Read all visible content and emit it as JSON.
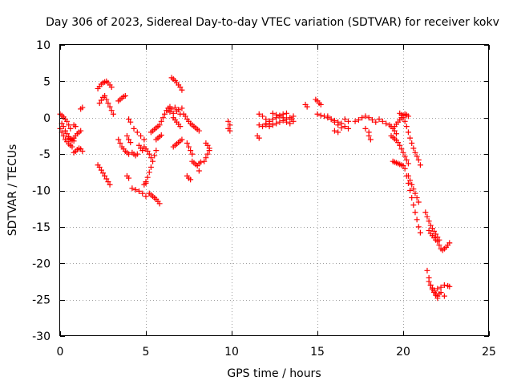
{
  "chart_data": {
    "type": "scatter",
    "title": "Day 306 of 2023, Sidereal Day-to-day VTEC variation (SDTVAR) for receiver kokv",
    "xlabel": "GPS time / hours",
    "ylabel": "SDTVAR / TECUs",
    "xlim": [
      0,
      25
    ],
    "ylim": [
      -30,
      10
    ],
    "xticks": [
      0,
      5,
      10,
      15,
      20,
      25
    ],
    "yticks": [
      -30,
      -25,
      -20,
      -15,
      -10,
      -5,
      0,
      5,
      10
    ],
    "xtick_labels": [
      "0",
      "5",
      "10",
      "15",
      "20",
      "25"
    ],
    "ytick_labels": [
      "-30",
      "-25",
      "-20",
      "-15",
      "-10",
      "-5",
      "0",
      "5",
      "10"
    ],
    "grid": true,
    "marker": "+",
    "color": "#ff0000",
    "series": [
      {
        "name": "seg01",
        "x": [
          0.0,
          0.1,
          0.2,
          0.3,
          0.4,
          0.5,
          0.6
        ],
        "y": [
          0.5,
          0.3,
          0.1,
          -0.2,
          -0.5,
          -1.0,
          -1.5
        ]
      },
      {
        "name": "seg02",
        "x": [
          0.0,
          0.1,
          0.2,
          0.3,
          0.4,
          0.5,
          0.6,
          0.7
        ],
        "y": [
          -1.5,
          -2.0,
          -2.5,
          -3.0,
          -3.3,
          -3.6,
          -3.8,
          -4.0
        ]
      },
      {
        "name": "seg03",
        "x": [
          0.1,
          0.2,
          0.3,
          0.4,
          0.5,
          0.6,
          0.7,
          0.8
        ],
        "y": [
          -0.8,
          -1.2,
          -1.8,
          -2.2,
          -2.6,
          -2.9,
          -3.1,
          -3.2
        ]
      },
      {
        "name": "seg04",
        "x": [
          0.5,
          0.6,
          0.7,
          0.8,
          0.9,
          1.0,
          1.1,
          1.2
        ],
        "y": [
          -2.8,
          -3.0,
          -3.0,
          -2.8,
          -2.5,
          -2.2,
          -2.0,
          -1.8
        ]
      },
      {
        "name": "seg05",
        "x": [
          0.8,
          0.9,
          1.0,
          1.1,
          1.2,
          1.3
        ],
        "y": [
          -4.8,
          -4.6,
          -4.4,
          -4.2,
          -4.3,
          -4.6
        ]
      },
      {
        "name": "seg06",
        "x": [
          0.8,
          0.9
        ],
        "y": [
          -1.0,
          -1.2
        ]
      },
      {
        "name": "seg07",
        "x": [
          1.2,
          1.3
        ],
        "y": [
          1.2,
          1.4
        ]
      },
      {
        "name": "seg08",
        "x": [
          2.2,
          2.3,
          2.4,
          2.5,
          2.6,
          2.7,
          2.8,
          2.9,
          3.0
        ],
        "y": [
          4.0,
          4.3,
          4.6,
          4.8,
          4.9,
          5.0,
          4.8,
          4.5,
          4.2
        ]
      },
      {
        "name": "seg09",
        "x": [
          2.3,
          2.4,
          2.5,
          2.6,
          2.7,
          2.8,
          2.9,
          3.0,
          3.1
        ],
        "y": [
          2.0,
          2.4,
          2.8,
          3.0,
          2.5,
          2.0,
          1.5,
          1.0,
          0.5
        ]
      },
      {
        "name": "seg10",
        "x": [
          2.2,
          2.3,
          2.4,
          2.5,
          2.6,
          2.7,
          2.8,
          2.9
        ],
        "y": [
          -6.5,
          -6.8,
          -7.2,
          -7.6,
          -8.0,
          -8.4,
          -8.8,
          -9.2
        ]
      },
      {
        "name": "seg11",
        "x": [
          3.4,
          3.5,
          3.6,
          3.7,
          3.8
        ],
        "y": [
          2.3,
          2.5,
          2.7,
          2.9,
          3.0
        ]
      },
      {
        "name": "seg12",
        "x": [
          3.4,
          3.5,
          3.6,
          3.7,
          3.8,
          3.9,
          4.0
        ],
        "y": [
          -3.0,
          -3.5,
          -4.0,
          -4.3,
          -4.6,
          -4.8,
          -5.0
        ]
      },
      {
        "name": "seg13",
        "x": [
          3.9,
          4.0,
          4.1
        ],
        "y": [
          -2.5,
          -3.0,
          -3.4
        ]
      },
      {
        "name": "seg14",
        "x": [
          3.9,
          4.0
        ],
        "y": [
          -8.0,
          -8.3
        ]
      },
      {
        "name": "seg15",
        "x": [
          4.0,
          4.1
        ],
        "y": [
          -0.2,
          -0.6
        ]
      },
      {
        "name": "seg16",
        "x": [
          4.2,
          4.3,
          4.4,
          4.5
        ],
        "y": [
          -4.8,
          -5.0,
          -5.2,
          -5.0
        ]
      },
      {
        "name": "seg17",
        "x": [
          4.2,
          4.4,
          4.6,
          4.8,
          5.0
        ],
        "y": [
          -9.7,
          -9.9,
          -10.1,
          -10.4,
          -10.8
        ]
      },
      {
        "name": "seg18",
        "x": [
          4.3,
          4.5,
          4.7,
          4.9
        ],
        "y": [
          -1.5,
          -2.0,
          -2.5,
          -3.0
        ]
      },
      {
        "name": "seg19",
        "x": [
          4.6,
          4.7,
          4.8
        ],
        "y": [
          -3.8,
          -4.2,
          -4.5
        ]
      },
      {
        "name": "seg20",
        "x": [
          4.9,
          5.0,
          5.1,
          5.2,
          5.3
        ],
        "y": [
          -4.0,
          -4.3,
          -4.6,
          -5.0,
          -5.5
        ]
      },
      {
        "name": "seg21",
        "x": [
          4.9,
          5.0
        ],
        "y": [
          -9.2,
          -8.8
        ]
      },
      {
        "name": "seg22",
        "x": [
          5.2,
          5.3,
          5.4,
          5.5,
          5.6,
          5.7,
          5.8
        ],
        "y": [
          -10.4,
          -10.6,
          -10.8,
          -11.0,
          -11.2,
          -11.5,
          -11.8
        ]
      },
      {
        "name": "seg23",
        "x": [
          5.0,
          5.1,
          5.2,
          5.3,
          5.4,
          5.5,
          5.6
        ],
        "y": [
          -9.0,
          -8.2,
          -7.5,
          -6.8,
          -6.0,
          -5.2,
          -4.5
        ]
      },
      {
        "name": "seg24",
        "x": [
          5.3,
          5.4,
          5.5,
          5.6,
          5.7,
          5.8
        ],
        "y": [
          -2.0,
          -1.8,
          -1.6,
          -1.4,
          -1.2,
          -1.0
        ]
      },
      {
        "name": "seg25",
        "x": [
          5.6,
          5.7,
          5.8,
          5.9
        ],
        "y": [
          -3.0,
          -2.8,
          -2.6,
          -2.4
        ]
      },
      {
        "name": "seg26",
        "x": [
          5.9,
          6.0,
          6.1,
          6.2,
          6.3,
          6.4
        ],
        "y": [
          -0.5,
          0.0,
          0.5,
          1.0,
          1.3,
          1.5
        ]
      },
      {
        "name": "seg27",
        "x": [
          6.5,
          6.6,
          6.7,
          6.8,
          6.9,
          7.0,
          7.1
        ],
        "y": [
          5.5,
          5.3,
          5.1,
          4.8,
          4.5,
          4.2,
          3.8
        ]
      },
      {
        "name": "seg28",
        "x": [
          6.3,
          6.4,
          6.5,
          6.6,
          6.7,
          6.8,
          6.9,
          7.0,
          7.1
        ],
        "y": [
          1.0,
          0.8,
          1.2,
          0.6,
          1.4,
          0.9,
          1.1,
          0.5,
          1.3
        ]
      },
      {
        "name": "seg29",
        "x": [
          6.6,
          6.7,
          6.8,
          6.9,
          7.0,
          7.1
        ],
        "y": [
          -4.0,
          -3.8,
          -3.6,
          -3.4,
          -3.2,
          -3.0
        ]
      },
      {
        "name": "seg30",
        "x": [
          6.6,
          6.7,
          6.8,
          6.9,
          7.0
        ],
        "y": [
          0.0,
          -0.3,
          -0.6,
          -0.9,
          -1.2
        ]
      },
      {
        "name": "seg31",
        "x": [
          7.2,
          7.3,
          7.4,
          7.5,
          7.6,
          7.7
        ],
        "y": [
          0.5,
          0.2,
          -0.2,
          -0.5,
          -0.8,
          -1.0
        ]
      },
      {
        "name": "seg32",
        "x": [
          7.4,
          7.5,
          7.6,
          7.7
        ],
        "y": [
          -3.5,
          -4.0,
          -4.5,
          -5.0
        ]
      },
      {
        "name": "seg33",
        "x": [
          7.4,
          7.5,
          7.6
        ],
        "y": [
          -8.0,
          -8.3,
          -8.5
        ]
      },
      {
        "name": "seg34",
        "x": [
          7.8,
          7.9,
          8.0,
          8.1
        ],
        "y": [
          -1.2,
          -1.4,
          -1.6,
          -1.8
        ]
      },
      {
        "name": "seg35",
        "x": [
          7.7,
          7.8,
          7.9,
          8.0,
          8.1,
          8.2
        ],
        "y": [
          -6.0,
          -6.2,
          -6.4,
          -6.6,
          -6.3,
          -6.1
        ]
      },
      {
        "name": "seg36",
        "x": [
          8.1
        ],
        "y": [
          -7.3
        ]
      },
      {
        "name": "seg37",
        "x": [
          8.4,
          8.5,
          8.6,
          8.7
        ],
        "y": [
          -6.0,
          -5.5,
          -5.0,
          -4.5
        ]
      },
      {
        "name": "seg38",
        "x": [
          8.5,
          8.6,
          8.7
        ],
        "y": [
          -3.5,
          -3.8,
          -4.2
        ]
      },
      {
        "name": "seg39",
        "x": [
          9.8,
          9.9
        ],
        "y": [
          -0.5,
          -1.0
        ]
      },
      {
        "name": "seg40",
        "x": [
          9.8,
          9.9
        ],
        "y": [
          -1.5,
          -1.8
        ]
      },
      {
        "name": "seg41",
        "x": [
          11.5,
          11.6
        ],
        "y": [
          -2.5,
          -2.8
        ]
      },
      {
        "name": "seg42",
        "x": [
          11.6,
          11.8,
          12.0,
          12.2
        ],
        "y": [
          0.5,
          0.2,
          -0.2,
          -0.5
        ]
      },
      {
        "name": "seg43",
        "x": [
          11.6,
          11.8,
          12.0,
          12.2
        ],
        "y": [
          -1.0,
          -1.2,
          -1.0,
          -0.8
        ]
      },
      {
        "name": "seg44",
        "x": [
          12.0,
          12.2,
          12.4,
          12.6,
          12.8,
          13.0,
          13.2
        ],
        "y": [
          -0.8,
          -0.5,
          -0.2,
          0.0,
          0.3,
          0.5,
          0.6
        ]
      },
      {
        "name": "seg45",
        "x": [
          12.2,
          12.4,
          12.6,
          12.8,
          13.0,
          13.2,
          13.4
        ],
        "y": [
          -1.2,
          -1.0,
          -0.8,
          -0.6,
          -0.4,
          -0.6,
          -0.8
        ]
      },
      {
        "name": "seg46",
        "x": [
          12.4,
          12.6,
          12.8,
          13.0,
          13.2,
          13.4,
          13.6
        ],
        "y": [
          0.6,
          0.4,
          0.2,
          0.0,
          -0.2,
          0.0,
          0.2
        ]
      },
      {
        "name": "seg47",
        "x": [
          13.5,
          13.6
        ],
        "y": [
          -0.2,
          -0.5
        ]
      },
      {
        "name": "seg48",
        "x": [
          14.9,
          15.0,
          15.1,
          15.2
        ],
        "y": [
          2.5,
          2.3,
          2.0,
          1.8
        ]
      },
      {
        "name": "seg49",
        "x": [
          14.3,
          14.4
        ],
        "y": [
          1.8,
          1.5
        ]
      },
      {
        "name": "seg50",
        "x": [
          15.0,
          15.2,
          15.4,
          15.6,
          15.8,
          16.0,
          16.2,
          16.4
        ],
        "y": [
          0.5,
          0.3,
          0.2,
          0.0,
          -0.2,
          -0.4,
          -0.6,
          -0.8
        ]
      },
      {
        "name": "seg51",
        "x": [
          15.6,
          15.8,
          16.0,
          16.2,
          16.4
        ],
        "y": [
          0.2,
          -0.2,
          -0.6,
          -1.0,
          -1.4
        ]
      },
      {
        "name": "seg52",
        "x": [
          16.0,
          16.2
        ],
        "y": [
          -1.8,
          -2.0
        ]
      },
      {
        "name": "seg53",
        "x": [
          16.6,
          16.8
        ],
        "y": [
          -0.2,
          -0.5
        ]
      },
      {
        "name": "seg54",
        "x": [
          16.6,
          16.8
        ],
        "y": [
          -1.2,
          -1.5
        ]
      },
      {
        "name": "seg55",
        "x": [
          17.2,
          17.4,
          17.6,
          17.8,
          18.0,
          18.2,
          18.4
        ],
        "y": [
          -0.5,
          -0.3,
          0.0,
          0.2,
          0.0,
          -0.3,
          -0.6
        ]
      },
      {
        "name": "seg56",
        "x": [
          17.8,
          18.0
        ],
        "y": [
          -1.5,
          -2.0
        ]
      },
      {
        "name": "seg57",
        "x": [
          18.0,
          18.1
        ],
        "y": [
          -2.5,
          -3.0
        ]
      },
      {
        "name": "seg58",
        "x": [
          18.6,
          18.8,
          19.0
        ],
        "y": [
          -0.2,
          -0.5,
          -0.8
        ]
      },
      {
        "name": "seg59",
        "x": [
          19.2,
          19.3,
          19.4,
          19.5,
          19.6
        ],
        "y": [
          -1.0,
          -1.2,
          -1.5,
          -1.8,
          -2.2
        ]
      },
      {
        "name": "seg60",
        "x": [
          19.3,
          19.4,
          19.5,
          19.6,
          19.7,
          19.8,
          19.9,
          20.0,
          20.1,
          20.2,
          20.3
        ],
        "y": [
          -2.5,
          -2.7,
          -2.9,
          -3.1,
          -3.4,
          -3.8,
          -4.3,
          -4.8,
          -5.3,
          -5.8,
          -6.3
        ]
      },
      {
        "name": "seg61",
        "x": [
          19.5,
          19.6,
          19.7,
          19.8,
          19.9,
          20.0,
          20.1,
          20.2,
          20.3
        ],
        "y": [
          -1.2,
          -0.9,
          -0.6,
          -0.3,
          0.0,
          0.3,
          0.5,
          0.4,
          0.2
        ]
      },
      {
        "name": "seg62",
        "x": [
          19.8,
          19.9,
          20.0,
          20.1,
          20.2,
          20.3,
          20.4,
          20.5,
          20.6,
          20.7,
          20.8,
          20.9,
          21.0
        ],
        "y": [
          0.6,
          0.4,
          0.0,
          -0.5,
          -1.2,
          -2.0,
          -2.8,
          -3.5,
          -4.2,
          -4.8,
          -5.3,
          -5.8,
          -6.5
        ]
      },
      {
        "name": "seg63",
        "x": [
          19.4,
          19.5,
          19.6,
          19.7,
          19.8,
          19.9,
          20.0
        ],
        "y": [
          -6.0,
          -6.1,
          -6.2,
          -6.3,
          -6.4,
          -6.5,
          -6.6
        ]
      },
      {
        "name": "seg64",
        "x": [
          20.1,
          20.2,
          20.3,
          20.4,
          20.5,
          20.6,
          20.7,
          20.8,
          20.9,
          21.0
        ],
        "y": [
          -7.0,
          -8.0,
          -9.0,
          -10.0,
          -11.0,
          -12.0,
          -13.0,
          -14.0,
          -15.0,
          -15.8
        ]
      },
      {
        "name": "seg65",
        "x": [
          20.3,
          20.4,
          20.5,
          20.6,
          20.7,
          20.8,
          20.9
        ],
        "y": [
          -8.0,
          -8.6,
          -9.2,
          -9.8,
          -10.4,
          -11.0,
          -11.6
        ]
      },
      {
        "name": "seg66",
        "x": [
          21.3,
          21.4,
          21.5,
          21.6,
          21.7,
          21.8,
          21.9,
          22.0,
          22.1
        ],
        "y": [
          -13.0,
          -13.6,
          -14.2,
          -14.8,
          -15.2,
          -15.6,
          -16.0,
          -16.4,
          -16.8
        ]
      },
      {
        "name": "seg67",
        "x": [
          21.5,
          21.6,
          21.7,
          21.8,
          21.9,
          22.0
        ],
        "y": [
          -15.5,
          -15.9,
          -16.2,
          -16.5,
          -16.8,
          -17.0
        ]
      },
      {
        "name": "seg68",
        "x": [
          22.1,
          22.2,
          22.3,
          22.4
        ],
        "y": [
          -17.5,
          -18.0,
          -18.2,
          -18.0
        ]
      },
      {
        "name": "seg69",
        "x": [
          22.5,
          22.6,
          22.7
        ],
        "y": [
          -17.8,
          -17.5,
          -17.2
        ]
      },
      {
        "name": "seg70",
        "x": [
          21.4,
          21.5,
          21.6,
          21.7,
          21.8,
          21.9,
          22.0
        ],
        "y": [
          -21.0,
          -22.0,
          -23.0,
          -23.6,
          -24.0,
          -24.4,
          -24.8
        ]
      },
      {
        "name": "seg71",
        "x": [
          21.5,
          21.6,
          21.7,
          21.8,
          21.9,
          22.0,
          22.1
        ],
        "y": [
          -22.5,
          -23.0,
          -23.4,
          -23.8,
          -24.2,
          -24.5,
          -24.2
        ]
      },
      {
        "name": "seg72",
        "x": [
          22.0,
          22.2,
          22.4
        ],
        "y": [
          -23.5,
          -24.0,
          -24.5
        ]
      },
      {
        "name": "seg73",
        "x": [
          22.2,
          22.4,
          22.6,
          22.7
        ],
        "y": [
          -23.3,
          -23.0,
          -23.1,
          -23.2
        ]
      }
    ]
  }
}
